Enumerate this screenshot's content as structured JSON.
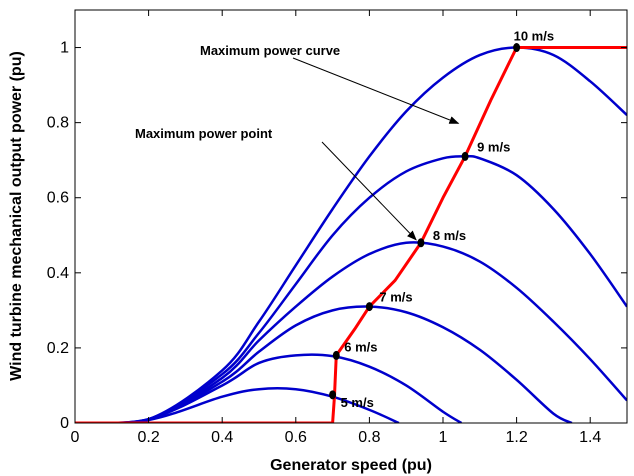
{
  "chart_data": {
    "type": "line",
    "xlabel": "Generator speed (pu)",
    "ylabel": "Wind turbine mechanical output power (pu)",
    "xlim": [
      0,
      1.5
    ],
    "ylim": [
      0,
      1.1
    ],
    "xticks": [
      0,
      0.2,
      0.4,
      0.6,
      0.8,
      1,
      1.2,
      1.4
    ],
    "xtick_labels": [
      "0",
      "0.2",
      "0.4",
      "0.6",
      "0.8",
      "1",
      "1.2",
      "1.4"
    ],
    "yticks": [
      0,
      0.2,
      0.4,
      0.6,
      0.8,
      1
    ],
    "ytick_labels": [
      "0",
      "0.2",
      "0.4",
      "0.6",
      "0.8",
      "1"
    ],
    "grid": false,
    "colors": {
      "power_curves": "#0000cc",
      "mpp_curve": "#ff0000",
      "points": "#000000"
    },
    "series": [
      {
        "name": "5 m/s",
        "kind": "power_curve",
        "peak": [
          0.5,
          0.09
        ],
        "x": [
          0,
          0.2,
          0.4,
          0.5,
          0.6,
          0.7,
          0.8,
          0.88
        ],
        "y": [
          0,
          0.008,
          0.07,
          0.09,
          0.09,
          0.07,
          0.035,
          0
        ]
      },
      {
        "name": "6 m/s",
        "kind": "power_curve",
        "peak": [
          0.62,
          0.18
        ],
        "x": [
          0,
          0.2,
          0.4,
          0.5,
          0.6,
          0.7,
          0.8,
          0.9,
          1.0,
          1.05
        ],
        "y": [
          0,
          0.01,
          0.1,
          0.16,
          0.18,
          0.178,
          0.15,
          0.1,
          0.03,
          0
        ]
      },
      {
        "name": "7 m/s",
        "kind": "power_curve",
        "peak": [
          0.8,
          0.31
        ],
        "x": [
          0,
          0.2,
          0.4,
          0.5,
          0.6,
          0.7,
          0.8,
          0.9,
          1.0,
          1.1,
          1.2,
          1.3,
          1.35
        ],
        "y": [
          0,
          0.01,
          0.11,
          0.19,
          0.26,
          0.3,
          0.31,
          0.295,
          0.255,
          0.195,
          0.115,
          0.025,
          0
        ]
      },
      {
        "name": "8 m/s",
        "kind": "power_curve",
        "peak": [
          0.94,
          0.48
        ],
        "x": [
          0,
          0.2,
          0.4,
          0.5,
          0.6,
          0.7,
          0.8,
          0.9,
          1.0,
          1.1,
          1.2,
          1.3,
          1.4,
          1.5
        ],
        "y": [
          0,
          0.01,
          0.12,
          0.22,
          0.31,
          0.39,
          0.45,
          0.48,
          0.47,
          0.43,
          0.36,
          0.27,
          0.17,
          0.06
        ]
      },
      {
        "name": "9 m/s",
        "kind": "power_curve",
        "peak": [
          1.06,
          0.71
        ],
        "x": [
          0,
          0.2,
          0.4,
          0.5,
          0.6,
          0.7,
          0.8,
          0.9,
          1.0,
          1.06,
          1.1,
          1.2,
          1.3,
          1.4,
          1.5
        ],
        "y": [
          0,
          0.01,
          0.13,
          0.24,
          0.37,
          0.5,
          0.6,
          0.67,
          0.705,
          0.71,
          0.705,
          0.66,
          0.57,
          0.45,
          0.31
        ]
      },
      {
        "name": "10 m/s",
        "kind": "power_curve",
        "peak": [
          1.2,
          1.0
        ],
        "x": [
          0,
          0.2,
          0.4,
          0.5,
          0.6,
          0.7,
          0.8,
          0.9,
          1.0,
          1.1,
          1.2,
          1.3,
          1.4,
          1.5
        ],
        "y": [
          0,
          0.01,
          0.14,
          0.27,
          0.42,
          0.57,
          0.71,
          0.83,
          0.92,
          0.98,
          1.0,
          0.98,
          0.91,
          0.82
        ]
      },
      {
        "name": "Maximum power curve",
        "kind": "mpp_curve",
        "x": [
          0,
          0.7,
          0.705,
          0.71,
          0.76,
          0.8,
          0.87,
          0.94,
          1.0,
          1.06,
          1.13,
          1.2,
          1.5
        ],
        "y": [
          0,
          0,
          0.07,
          0.18,
          0.25,
          0.31,
          0.38,
          0.48,
          0.6,
          0.71,
          0.86,
          1.0,
          1.0
        ]
      }
    ],
    "points": [
      {
        "label": "5 m/s",
        "x": 0.7,
        "y": 0.075
      },
      {
        "label": "6 m/s",
        "x": 0.71,
        "y": 0.18
      },
      {
        "label": "7 m/s",
        "x": 0.8,
        "y": 0.31
      },
      {
        "label": "8 m/s",
        "x": 0.94,
        "y": 0.48
      },
      {
        "label": "9 m/s",
        "x": 1.06,
        "y": 0.71
      },
      {
        "label": "10 m/s",
        "x": 1.2,
        "y": 1.0
      }
    ],
    "annotations": [
      {
        "text": "Maximum power curve",
        "arrow_to": [
          1.05,
          0.79
        ]
      },
      {
        "text": "Maximum power point",
        "arrow_to": [
          0.935,
          0.48
        ]
      }
    ]
  }
}
